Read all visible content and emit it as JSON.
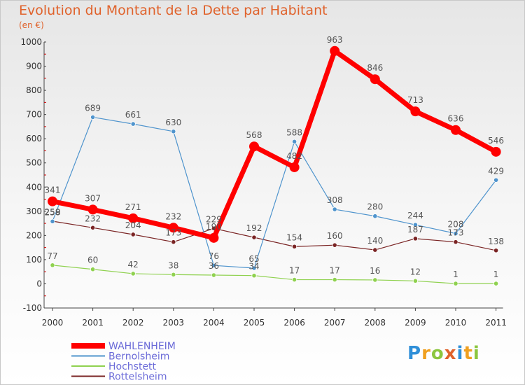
{
  "header": {
    "title": "Evolution du Montant de la Dette par Habitant",
    "unit": "(en €)"
  },
  "logo": {
    "text": "Proxiti",
    "colors": [
      "#2f8fd8",
      "#f0a020",
      "#8cc63f",
      "#e0622b",
      "#2f8fd8",
      "#f0a020",
      "#8cc63f"
    ]
  },
  "chart_data": {
    "type": "line",
    "title": "Evolution du Montant de la Dette par Habitant",
    "subtitle": "(en €)",
    "xlabel": "",
    "ylabel": "",
    "x": [
      "2000",
      "2001",
      "2002",
      "2003",
      "2004",
      "2005",
      "2006",
      "2007",
      "2008",
      "2009",
      "2010",
      "2011"
    ],
    "ylim": [
      -100,
      1000
    ],
    "yticks": [
      -100,
      0,
      100,
      200,
      300,
      400,
      500,
      600,
      700,
      800,
      900,
      1000
    ],
    "grid": false,
    "legend": "bottom-left",
    "series": [
      {
        "name": "Rottelsheim",
        "color": "#7a2424",
        "values": [
          259,
          232,
          204,
          173,
          229,
          192,
          154,
          160,
          140,
          187,
          173,
          138
        ]
      },
      {
        "name": "Hochstett",
        "color": "#8fd14f",
        "values": [
          77,
          60,
          42,
          38,
          36,
          34,
          17,
          17,
          16,
          12,
          1,
          1
        ]
      },
      {
        "name": "Bernolsheim",
        "color": "#4f94cd",
        "values": [
          258,
          689,
          661,
          630,
          76,
          65,
          588,
          308,
          280,
          244,
          208,
          429
        ]
      },
      {
        "name": "WAHLENHEIM",
        "color": "#ff0000",
        "values": [
          341,
          307,
          271,
          232,
          190,
          568,
          482,
          963,
          846,
          713,
          636,
          546
        ]
      }
    ],
    "legend_order": [
      "WAHLENHEIM",
      "Bernolsheim",
      "Hochstett",
      "Rottelsheim"
    ]
  }
}
